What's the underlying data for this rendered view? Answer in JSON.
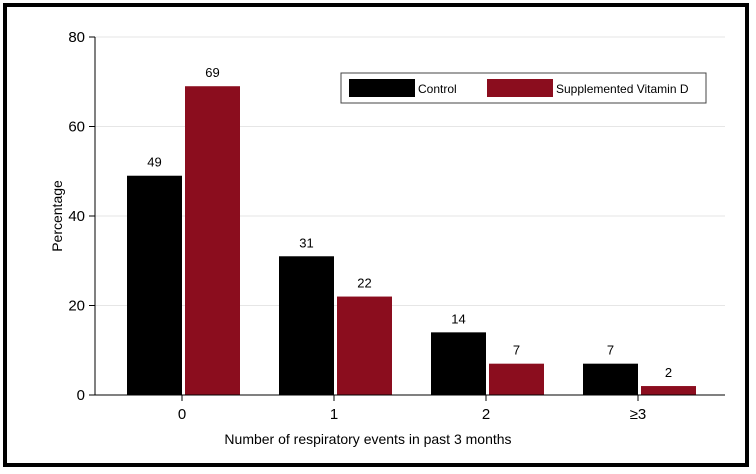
{
  "chart_data": {
    "type": "bar",
    "title": "",
    "xlabel": "Number of respiratory events in past 3 months",
    "ylabel": "Percentage",
    "categories": [
      "0",
      "1",
      "2",
      "≥3"
    ],
    "series": [
      {
        "name": "Control",
        "color": "#000000",
        "values": [
          49,
          31,
          14,
          7
        ],
        "labels": [
          "49",
          "31",
          "14",
          "7"
        ]
      },
      {
        "name": "Supplemented Vitamin D",
        "color": "#8b0d1e",
        "values": [
          69,
          22,
          7,
          2
        ],
        "labels": [
          "69",
          "22",
          "7",
          "2"
        ]
      }
    ],
    "ylim": [
      0,
      80
    ],
    "yticks": [
      0,
      20,
      40,
      60,
      80
    ],
    "grid": true,
    "legend": "top-right"
  }
}
